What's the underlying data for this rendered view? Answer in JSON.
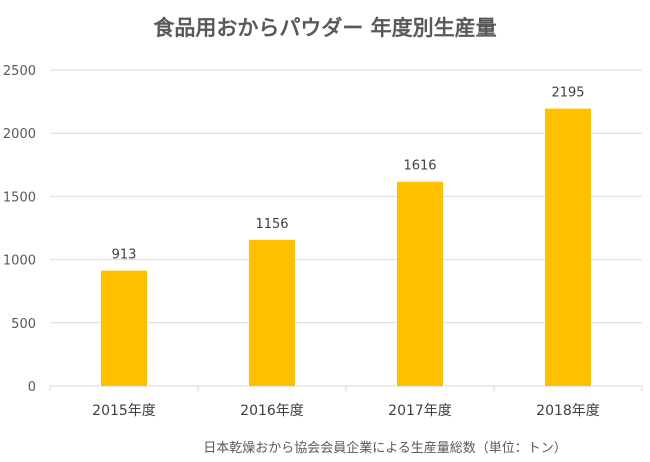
{
  "chart_data": {
    "type": "bar",
    "title": "食品用おからパウダー 年度別生産量",
    "categories": [
      "2015年度",
      "2016年度",
      "2017年度",
      "2018年度"
    ],
    "values": [
      913,
      1156,
      1616,
      2195
    ],
    "ylim": [
      0,
      2500
    ],
    "yticks": [
      0,
      500,
      1000,
      1500,
      2000,
      2500
    ],
    "xlabel": "",
    "ylabel": "",
    "grid": true,
    "bar_color": "#FFC000",
    "footnote": "日本乾燥おから協会会員企業による生産量総数（単位：トン）"
  }
}
